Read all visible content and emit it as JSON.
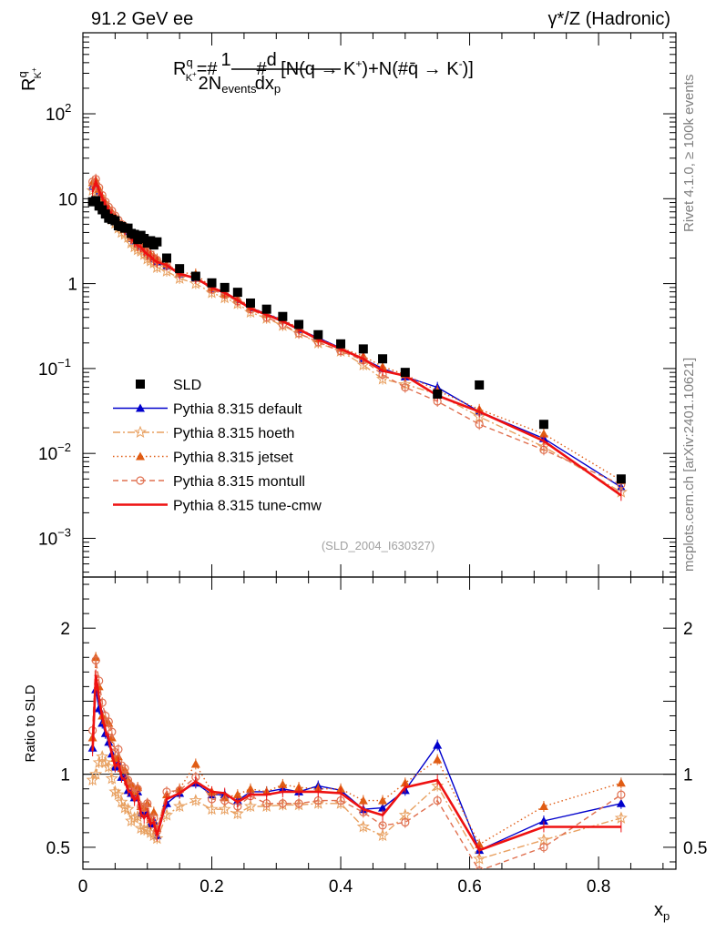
{
  "header": {
    "left": "91.2 GeV ee",
    "right": "γ*/Z (Hadronic)"
  },
  "side_labels": {
    "rivet": "Rivet 4.1.0, ≥ 100k events",
    "mcplots": "mcplots.cern.ch [arXiv:2401.10621]"
  },
  "colors": {
    "SLD": "#000000",
    "default": "#0000cc",
    "hoeth": "#e8a060",
    "jetset": "#e05c14",
    "montull": "#e07050",
    "cmw": "#ee1111"
  },
  "chart_data": [
    {
      "type": "line",
      "yscale": "log",
      "title": "R^q_{K+} = #(1 / 2N_events) #(d / dx_p) [N(q → K+) + N(#q̄ → K-)]",
      "ylabel": "R^q_K+",
      "ylim": [
        0.00035,
        900
      ],
      "xlim": [
        0,
        0.92
      ],
      "y_ticks": [
        {
          "v": 0.001,
          "base": "10",
          "exp": "−3"
        },
        {
          "v": 0.01,
          "base": "10",
          "exp": "−2"
        },
        {
          "v": 0.1,
          "base": "10",
          "exp": "−1"
        },
        {
          "v": 1,
          "base": "1",
          "exp": ""
        },
        {
          "v": 10,
          "base": "10",
          "exp": ""
        },
        {
          "v": 100,
          "base": "10",
          "exp": "2"
        }
      ],
      "x": [
        0.015,
        0.02,
        0.025,
        0.03,
        0.035,
        0.04,
        0.045,
        0.05,
        0.055,
        0.06,
        0.065,
        0.07,
        0.075,
        0.08,
        0.085,
        0.09,
        0.095,
        0.1,
        0.105,
        0.11,
        0.115,
        0.13,
        0.15,
        0.175,
        0.2,
        0.22,
        0.24,
        0.26,
        0.285,
        0.31,
        0.335,
        0.365,
        0.4,
        0.435,
        0.465,
        0.5,
        0.55,
        0.615,
        0.715,
        0.835
      ],
      "annotation": "(SLD_2004_I630327)",
      "legend_position": "bottom-left",
      "series": [
        {
          "key": "SLD",
          "name": "SLD",
          "style": "data",
          "values": [
            9.2,
            9.5,
            8.2,
            7.4,
            6.6,
            5.9,
            5.7,
            5.5,
            4.8,
            4.7,
            4.5,
            4.5,
            3.9,
            3.8,
            3.3,
            3.7,
            3.4,
            3.0,
            3.2,
            2.85,
            3.1,
            2.0,
            1.5,
            1.22,
            1.02,
            0.9,
            0.79,
            0.59,
            0.5,
            0.41,
            0.33,
            0.25,
            0.195,
            0.17,
            0.13,
            0.09,
            0.05,
            0.064,
            0.022,
            0.005
          ]
        },
        {
          "key": "default",
          "name": "Pythia 8.315 default",
          "style": "solid",
          "marker": "tri",
          "values": [
            14.0,
            15.0,
            12.0,
            10.0,
            8.4,
            7.2,
            6.5,
            5.8,
            5.2,
            4.6,
            4.4,
            4.0,
            3.4,
            3.2,
            2.9,
            2.7,
            2.5,
            2.2,
            2.1,
            1.95,
            1.8,
            1.6,
            1.3,
            1.15,
            0.88,
            0.77,
            0.65,
            0.52,
            0.44,
            0.37,
            0.29,
            0.23,
            0.174,
            0.13,
            0.1,
            0.08,
            0.06,
            0.031,
            0.015,
            0.004
          ]
        },
        {
          "key": "hoeth",
          "name": "Pythia 8.315 hoeth",
          "style": "dashdot",
          "marker": "star",
          "values": [
            12.5,
            13.0,
            10.5,
            8.8,
            7.5,
            6.4,
            5.7,
            5.1,
            4.5,
            4.0,
            3.8,
            3.5,
            3.0,
            2.7,
            2.5,
            2.4,
            2.2,
            1.95,
            1.85,
            1.75,
            1.55,
            1.4,
            1.15,
            1.0,
            0.78,
            0.68,
            0.58,
            0.46,
            0.39,
            0.32,
            0.26,
            0.2,
            0.16,
            0.11,
            0.075,
            0.065,
            0.05,
            0.027,
            0.012,
            0.0035
          ]
        },
        {
          "key": "jetset",
          "name": "Pythia 8.315 jetset",
          "style": "dotted",
          "marker": "tri",
          "values": [
            15.5,
            16.5,
            13.0,
            10.5,
            9.0,
            7.8,
            7.0,
            6.2,
            5.5,
            5.0,
            4.6,
            4.3,
            3.6,
            3.3,
            3.0,
            2.9,
            2.6,
            2.4,
            2.2,
            2.1,
            1.95,
            1.7,
            1.35,
            1.3,
            0.9,
            0.76,
            0.68,
            0.53,
            0.44,
            0.38,
            0.3,
            0.225,
            0.175,
            0.14,
            0.105,
            0.085,
            0.055,
            0.033,
            0.017,
            0.0048
          ]
        },
        {
          "key": "montull",
          "name": "Pythia 8.315 montull",
          "style": "dashed",
          "marker": "circle",
          "values": [
            15.8,
            17.0,
            13.5,
            11.0,
            9.2,
            8.0,
            7.2,
            6.3,
            5.6,
            5.0,
            4.7,
            4.3,
            3.6,
            3.3,
            3.0,
            2.9,
            2.6,
            2.4,
            2.2,
            2.0,
            1.9,
            1.75,
            1.33,
            1.19,
            0.85,
            0.74,
            0.62,
            0.5,
            0.4,
            0.33,
            0.26,
            0.205,
            0.16,
            0.125,
            0.085,
            0.06,
            0.041,
            0.022,
            0.011,
            0.0043
          ]
        },
        {
          "key": "cmw",
          "name": "Pythia 8.315 tune-cmw",
          "style": "thick",
          "marker": "none",
          "values": [
            12.0,
            16.0,
            12.5,
            10.3,
            8.5,
            7.3,
            6.5,
            5.8,
            5.2,
            4.6,
            4.3,
            4.0,
            3.4,
            3.1,
            2.8,
            2.7,
            2.4,
            2.2,
            2.1,
            1.9,
            1.8,
            1.65,
            1.3,
            1.16,
            0.9,
            0.78,
            0.64,
            0.51,
            0.43,
            0.36,
            0.29,
            0.22,
            0.17,
            0.13,
            0.094,
            0.082,
            0.048,
            0.031,
            0.014,
            0.0032
          ]
        }
      ]
    },
    {
      "type": "line",
      "title": "",
      "ylabel": "Ratio to SLD",
      "xlabel": "x_p",
      "ylim": [
        0.35,
        2.35
      ],
      "xlim": [
        0,
        0.92
      ],
      "x_ticks": [
        "0",
        "0.2",
        "0.4",
        "0.6",
        "0.8"
      ],
      "y_ticks": [
        "0.5",
        "1",
        "2"
      ],
      "reference_line": 1.0,
      "series": [
        {
          "key": "default",
          "values": [
            1.18,
            1.58,
            1.45,
            1.35,
            1.28,
            1.22,
            1.14,
            1.05,
            1.08,
            0.98,
            0.98,
            0.89,
            0.87,
            0.84,
            0.88,
            0.73,
            0.74,
            0.73,
            0.66,
            0.68,
            0.58,
            0.8,
            0.87,
            0.94,
            0.86,
            0.86,
            0.82,
            0.88,
            0.88,
            0.9,
            0.88,
            0.92,
            0.89,
            0.76,
            0.77,
            0.89,
            1.2,
            0.48,
            0.68,
            0.8
          ]
        },
        {
          "key": "hoeth",
          "values": [
            0.96,
            1.0,
            1.08,
            1.12,
            1.08,
            1.05,
            0.97,
            0.88,
            0.86,
            0.81,
            0.77,
            0.76,
            0.68,
            0.7,
            0.71,
            0.63,
            0.62,
            0.62,
            0.6,
            0.58,
            0.56,
            0.72,
            0.78,
            0.82,
            0.76,
            0.76,
            0.73,
            0.78,
            0.78,
            0.79,
            0.79,
            0.8,
            0.8,
            0.64,
            0.58,
            0.72,
            0.92,
            0.42,
            0.55,
            0.7
          ]
        },
        {
          "key": "jetset",
          "values": [
            1.25,
            1.8,
            1.6,
            1.4,
            1.37,
            1.35,
            1.25,
            1.11,
            1.12,
            1.04,
            1.03,
            0.96,
            0.93,
            0.88,
            0.91,
            0.78,
            0.77,
            0.8,
            0.69,
            0.74,
            0.63,
            0.86,
            0.9,
            1.07,
            0.88,
            0.84,
            0.86,
            0.9,
            0.88,
            0.93,
            0.91,
            0.9,
            0.9,
            0.82,
            0.82,
            0.94,
            1.1,
            0.52,
            0.78,
            0.94
          ]
        },
        {
          "key": "montull",
          "values": [
            1.3,
            1.78,
            1.64,
            1.49,
            1.4,
            1.36,
            1.29,
            1.15,
            1.17,
            1.06,
            1.04,
            0.96,
            0.92,
            0.87,
            0.9,
            0.78,
            0.77,
            0.8,
            0.69,
            0.7,
            0.61,
            0.88,
            0.89,
            0.98,
            0.83,
            0.82,
            0.78,
            0.85,
            0.8,
            0.8,
            0.8,
            0.82,
            0.82,
            0.74,
            0.65,
            0.67,
            0.82,
            0.34,
            0.5,
            0.86
          ]
        },
        {
          "key": "cmw",
          "values": [
            1.16,
            1.68,
            1.52,
            1.39,
            1.3,
            1.24,
            1.14,
            1.05,
            1.08,
            0.98,
            0.96,
            0.89,
            0.87,
            0.82,
            0.85,
            0.73,
            0.7,
            0.73,
            0.66,
            0.67,
            0.58,
            0.83,
            0.87,
            0.95,
            0.88,
            0.87,
            0.81,
            0.86,
            0.86,
            0.88,
            0.88,
            0.88,
            0.87,
            0.76,
            0.72,
            0.91,
            0.96,
            0.48,
            0.64,
            0.64
          ]
        }
      ]
    }
  ]
}
